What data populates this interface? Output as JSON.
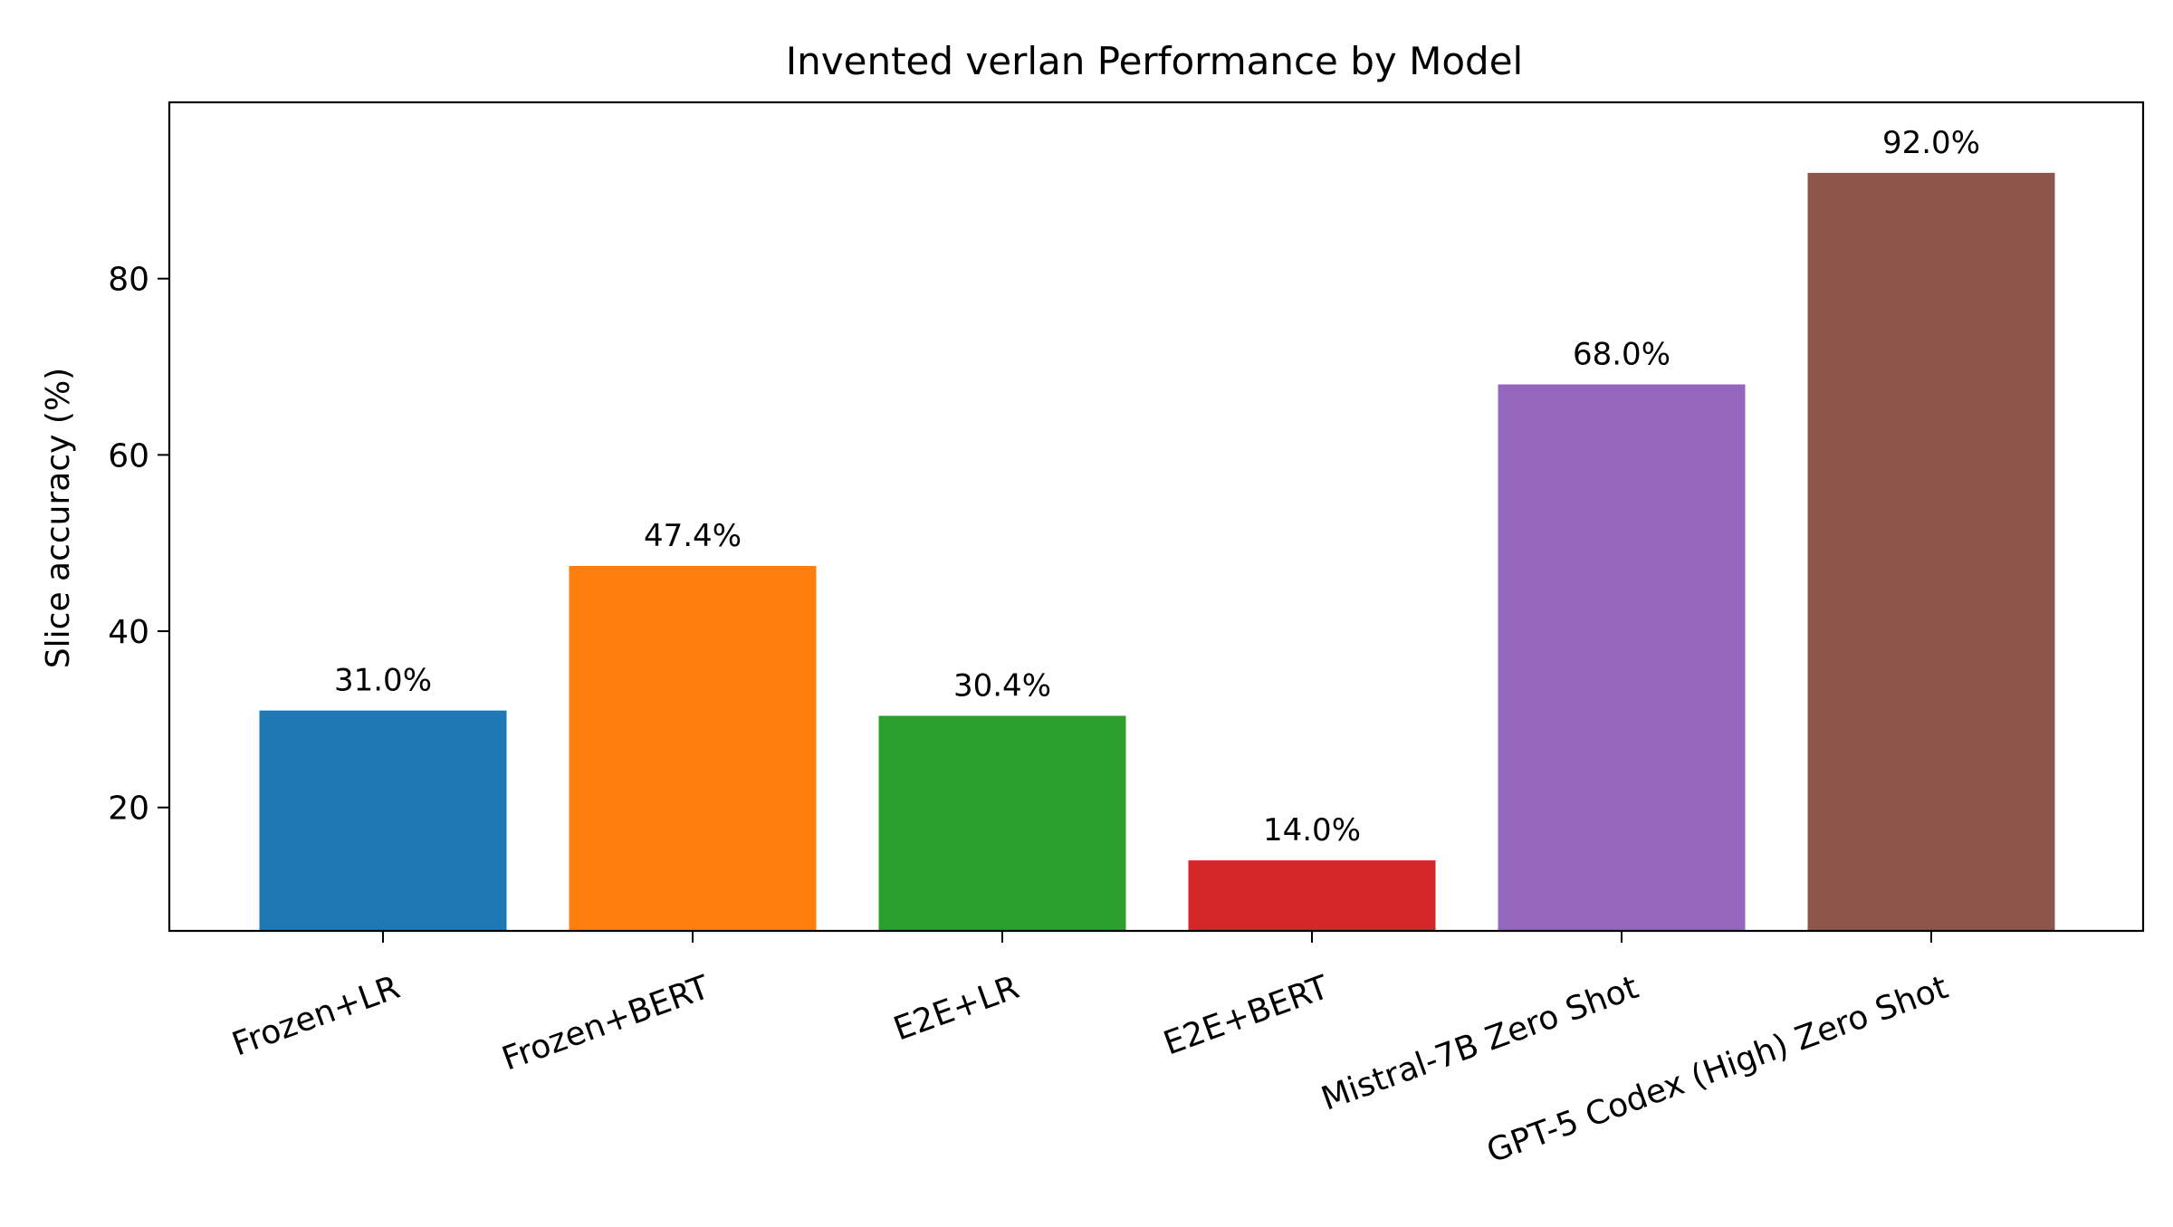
{
  "chart_data": {
    "type": "bar",
    "title": "Invented verlan Performance by Model",
    "xlabel": "",
    "ylabel": "Slice accuracy (%)",
    "categories": [
      "Frozen+LR",
      "Frozen+BERT",
      "E2E+LR",
      "E2E+BERT",
      "Mistral-7B Zero Shot",
      "GPT-5 Codex (High) Zero Shot"
    ],
    "values": [
      31.0,
      47.4,
      30.4,
      14.0,
      68.0,
      92.0
    ],
    "value_labels": [
      "31.0%",
      "47.4%",
      "30.4%",
      "14.0%",
      "68.0%",
      "92.0%"
    ],
    "colors": [
      "#1f77b4",
      "#ff7f0e",
      "#2ca02c",
      "#d62728",
      "#9467bd",
      "#8c564b"
    ],
    "ylim": [
      6,
      100
    ],
    "yticks": [
      20,
      40,
      60,
      80
    ],
    "ytick_labels": [
      "20",
      "40",
      "60",
      "80"
    ],
    "grid": false,
    "legend": "none"
  }
}
